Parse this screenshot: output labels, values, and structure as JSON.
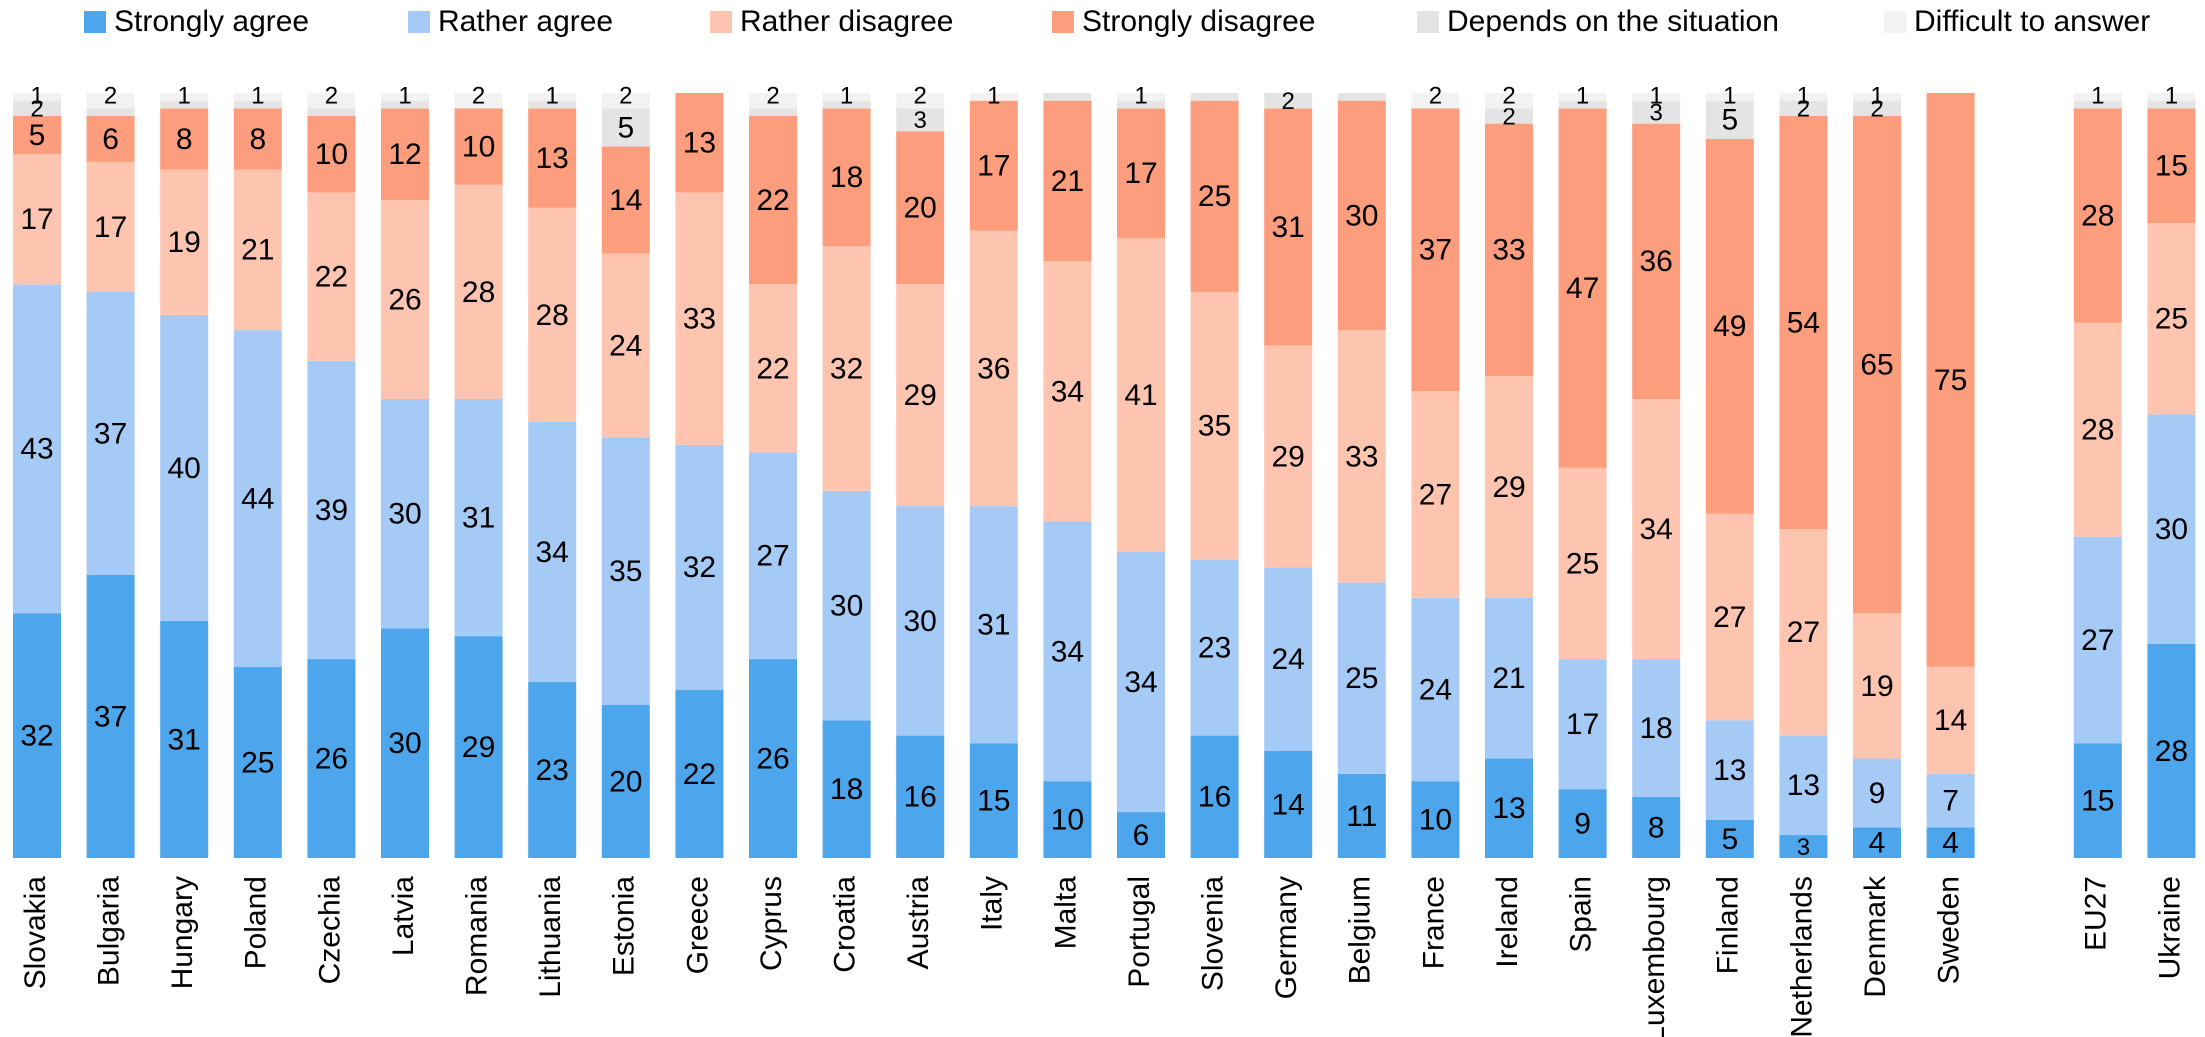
{
  "chart_data": {
    "type": "stacked_bar",
    "categories": [
      "Slovakia",
      "Bulgaria",
      "Hungary",
      "Poland",
      "Czechia",
      "Latvia",
      "Romania",
      "Lithuania",
      "Estonia",
      "Greece",
      "Cyprus",
      "Croatia",
      "Austria",
      "Italy",
      "Malta",
      "Portugal",
      "Slovenia",
      "Germany",
      "Belgium",
      "France",
      "Ireland",
      "Spain",
      "Luxembourg",
      "Finland",
      "Netherlands",
      "Denmark",
      "Sweden",
      null,
      "EU27",
      "Ukraine"
    ],
    "ylim": [
      0,
      100
    ],
    "legend": "top",
    "series": [
      {
        "name": "Strongly agree",
        "color": "#4da6ec",
        "values": [
          32,
          37,
          31,
          25,
          26,
          30,
          29,
          23,
          20,
          22,
          26,
          18,
          16,
          15,
          10,
          6,
          16,
          14,
          11,
          10,
          13,
          9,
          8,
          5,
          3,
          4,
          4,
          null,
          15,
          28
        ]
      },
      {
        "name": "Rather agree",
        "color": "#a6caf6",
        "values": [
          43,
          37,
          40,
          44,
          39,
          30,
          31,
          34,
          35,
          32,
          27,
          30,
          30,
          31,
          34,
          34,
          23,
          24,
          25,
          24,
          21,
          17,
          18,
          13,
          13,
          9,
          7,
          null,
          27,
          30
        ]
      },
      {
        "name": "Rather disagree",
        "color": "#fdc5b0",
        "values": [
          17,
          17,
          19,
          21,
          22,
          26,
          28,
          28,
          24,
          33,
          22,
          32,
          29,
          36,
          34,
          41,
          35,
          29,
          33,
          27,
          29,
          25,
          34,
          27,
          27,
          19,
          14,
          null,
          28,
          25
        ]
      },
      {
        "name": "Strongly disagree",
        "color": "#fc9e7d",
        "values": [
          5,
          6,
          8,
          8,
          10,
          12,
          10,
          13,
          14,
          13,
          22,
          18,
          20,
          17,
          21,
          17,
          25,
          31,
          30,
          37,
          33,
          47,
          36,
          49,
          54,
          65,
          75,
          null,
          28,
          15
        ]
      },
      {
        "name": "Depends on the situation",
        "color": "#e4e4e4",
        "values": [
          2,
          1,
          1,
          1,
          1,
          1,
          0,
          1,
          5,
          0,
          1,
          1,
          3,
          0,
          1,
          1,
          1,
          2,
          1,
          0,
          2,
          1,
          3,
          5,
          2,
          2,
          0,
          null,
          1,
          1
        ]
      },
      {
        "name": "Difficult to answer",
        "color": "#f2f2f2",
        "values": [
          1,
          2,
          1,
          1,
          2,
          1,
          2,
          1,
          2,
          0,
          2,
          1,
          2,
          1,
          0,
          1,
          0,
          0,
          0,
          2,
          2,
          1,
          1,
          1,
          1,
          1,
          0,
          null,
          1,
          1
        ]
      }
    ]
  }
}
